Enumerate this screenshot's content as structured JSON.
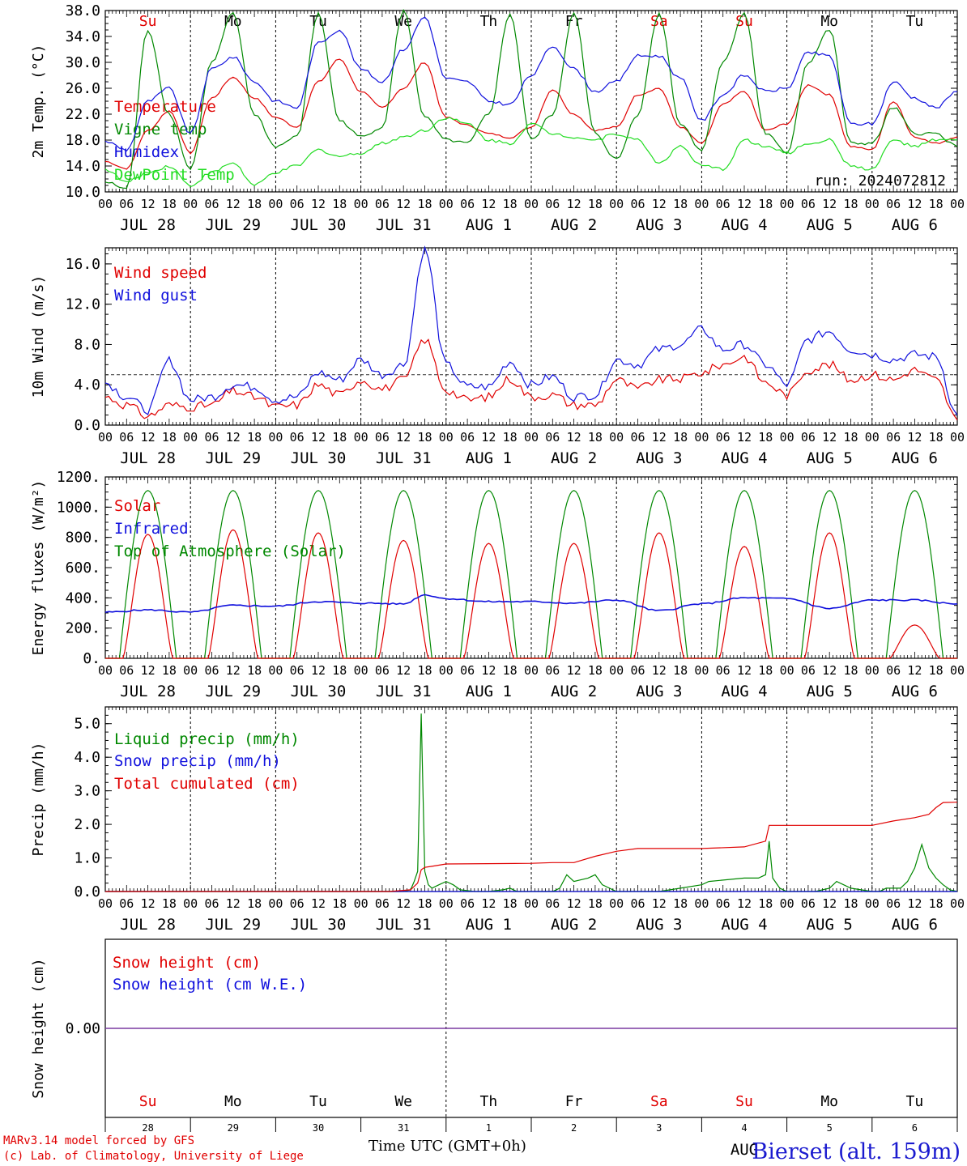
{
  "colors": {
    "red": "#e00000",
    "green": "#008800",
    "blue": "#1010dd",
    "lightgreen": "#22dd22",
    "purple": "#7a3aa0",
    "axis": "#000000"
  },
  "day_names": [
    "Su",
    "Mo",
    "Tu",
    "We",
    "Th",
    "Fr",
    "Sa",
    "Su",
    "Mo",
    "Tu"
  ],
  "day_name_colors": [
    "red",
    "black",
    "black",
    "black",
    "black",
    "black",
    "red",
    "red",
    "black",
    "black"
  ],
  "date_labels": [
    "JUL 28",
    "JUL 29",
    "JUL 30",
    "JUL 31",
    "AUG  1",
    "AUG  2",
    "AUG  3",
    "AUG  4",
    "AUG  5",
    "AUG  6"
  ],
  "hour_ticks": [
    "00",
    "06",
    "12",
    "18"
  ],
  "bottom_day_numbers": [
    "28",
    "29",
    "30",
    "31",
    "1",
    "2",
    "3",
    "4",
    "5",
    "6"
  ],
  "bottom_month": "AUG",
  "footer": {
    "model": "MARv3.14 model forced by GFS",
    "lab": "(c) Lab. of Climatology, University of Liege",
    "time_label": "Time UTC (GMT+0h)",
    "station": "Bierset (alt. 159m)"
  },
  "chart_data": [
    {
      "type": "line",
      "ylabel": "2m Temp. (°C)",
      "ylim": [
        10,
        38
      ],
      "yticks": [
        "10.0",
        "14.0",
        "18.0",
        "22.0",
        "26.0",
        "30.0",
        "34.0",
        "38.0"
      ],
      "annotation": "run: 2024072812",
      "series": [
        {
          "name": "Temperature",
          "color": "red",
          "x": [
            0,
            6,
            12,
            18,
            24,
            30,
            36,
            42,
            48,
            54,
            60,
            66,
            72,
            78,
            84,
            90,
            96,
            102,
            108,
            114,
            120,
            126,
            132,
            138,
            144,
            150,
            156,
            162,
            168,
            174,
            180,
            186,
            192,
            198,
            204,
            210,
            216,
            222,
            228,
            234,
            240
          ],
          "y": [
            14.7,
            13.6,
            19.5,
            22.5,
            16.0,
            24.5,
            27.7,
            24.5,
            21.5,
            20.0,
            27.0,
            30.5,
            25.5,
            23.0,
            26.0,
            30.0,
            21.5,
            20.3,
            19.0,
            18.4,
            20.0,
            25.8,
            22.0,
            19.5,
            20.0,
            25.0,
            26.0,
            20.0,
            17.5,
            23.5,
            25.5,
            19.5,
            20.5,
            26.5,
            25.0,
            17.0,
            16.5,
            24.0,
            18.5,
            17.5,
            18.5
          ]
        },
        {
          "name": "Vigne temp",
          "color": "green",
          "x": [
            0,
            6,
            12,
            18,
            24,
            30,
            36,
            42,
            48,
            54,
            60,
            66,
            72,
            78,
            84,
            90,
            96,
            102,
            108,
            114,
            120,
            126,
            132,
            138,
            144,
            150,
            156,
            162,
            168,
            174,
            180,
            186,
            192,
            198,
            204,
            210,
            216,
            222,
            228,
            234,
            240
          ],
          "y": [
            11.5,
            10.5,
            35.0,
            22.0,
            13.5,
            30.0,
            37.5,
            22.0,
            17.0,
            18.5,
            37.5,
            21.0,
            18.5,
            20.0,
            38.0,
            21.5,
            18.0,
            17.5,
            22.0,
            37.5,
            18.0,
            22.0,
            37.5,
            19.0,
            15.0,
            22.0,
            37.5,
            20.5,
            16.5,
            30.0,
            37.5,
            19.0,
            16.0,
            30.0,
            35.0,
            17.5,
            17.5,
            23.0,
            19.0,
            19.0,
            17.0
          ]
        },
        {
          "name": "Humidex",
          "color": "blue",
          "x": [
            0,
            6,
            12,
            18,
            24,
            30,
            36,
            42,
            48,
            54,
            60,
            66,
            72,
            78,
            84,
            90,
            96,
            102,
            108,
            114,
            120,
            126,
            132,
            138,
            144,
            150,
            156,
            162,
            168,
            174,
            180,
            186,
            192,
            198,
            204,
            210,
            216,
            222,
            228,
            234,
            240
          ],
          "y": [
            17.8,
            16.5,
            24.0,
            26.0,
            19.0,
            29.0,
            30.8,
            27.0,
            24.0,
            23.0,
            33.0,
            35.0,
            29.0,
            27.0,
            32.0,
            37.0,
            27.5,
            27.0,
            24.0,
            23.5,
            28.0,
            32.5,
            29.0,
            25.5,
            27.0,
            31.0,
            31.0,
            27.5,
            21.0,
            25.0,
            28.0,
            25.5,
            26.0,
            31.5,
            31.0,
            20.5,
            20.5,
            27.0,
            24.5,
            23.0,
            25.5
          ]
        },
        {
          "name": "DewPoint Temp",
          "color": "lightgreen",
          "x": [
            0,
            6,
            12,
            18,
            24,
            30,
            36,
            42,
            48,
            54,
            60,
            66,
            72,
            78,
            84,
            90,
            96,
            102,
            108,
            114,
            120,
            126,
            132,
            138,
            144,
            150,
            156,
            162,
            168,
            174,
            180,
            186,
            192,
            198,
            204,
            210,
            216,
            222,
            228,
            234,
            240
          ],
          "y": [
            13.5,
            11.5,
            13.0,
            14.0,
            11.0,
            13.0,
            14.5,
            11.0,
            13.0,
            14.0,
            16.5,
            15.5,
            16.0,
            17.5,
            18.5,
            19.5,
            21.5,
            20.5,
            18.0,
            17.5,
            20.5,
            19.0,
            18.5,
            18.0,
            19.0,
            18.0,
            14.5,
            17.0,
            14.0,
            13.5,
            18.0,
            17.0,
            16.0,
            17.5,
            18.0,
            14.0,
            13.5,
            18.0,
            17.0,
            18.0,
            18.0
          ]
        }
      ]
    },
    {
      "type": "line",
      "ylabel": "10m Wind (m/s)",
      "ylim": [
        0,
        17.6
      ],
      "yticks": [
        "0.0",
        "4.0",
        "8.0",
        "12.0",
        "16.0"
      ],
      "reference_line": 5.0,
      "series": [
        {
          "name": "Wind speed",
          "color": "red",
          "x": [
            0,
            6,
            12,
            18,
            24,
            30,
            36,
            42,
            48,
            54,
            60,
            66,
            72,
            78,
            84,
            90,
            96,
            102,
            108,
            114,
            120,
            126,
            132,
            138,
            144,
            150,
            156,
            162,
            168,
            174,
            180,
            186,
            192,
            198,
            204,
            210,
            216,
            222,
            228,
            234,
            240
          ],
          "y": [
            2.8,
            2.0,
            0.9,
            2.0,
            1.8,
            2.0,
            3.4,
            2.8,
            1.8,
            2.0,
            4.0,
            3.0,
            4.5,
            3.6,
            4.5,
            8.5,
            3.5,
            2.5,
            2.8,
            4.6,
            2.8,
            3.0,
            2.0,
            2.0,
            4.5,
            3.6,
            4.5,
            4.6,
            5.2,
            6.0,
            6.8,
            4.2,
            3.0,
            5.5,
            6.0,
            4.5,
            5.0,
            4.5,
            5.5,
            4.5,
            0.5
          ]
        },
        {
          "name": "Wind gust",
          "color": "blue",
          "x": [
            0,
            6,
            12,
            18,
            24,
            30,
            36,
            42,
            48,
            54,
            60,
            66,
            72,
            78,
            84,
            90,
            96,
            102,
            108,
            114,
            120,
            126,
            132,
            138,
            144,
            150,
            156,
            162,
            168,
            174,
            180,
            186,
            192,
            198,
            204,
            210,
            216,
            222,
            228,
            234,
            240
          ],
          "y": [
            4.2,
            2.8,
            1.5,
            6.4,
            2.5,
            2.8,
            4.0,
            3.8,
            2.5,
            2.8,
            5.2,
            4.5,
            6.5,
            5.0,
            6.0,
            17.4,
            6.0,
            3.8,
            3.8,
            6.3,
            4.0,
            4.8,
            2.8,
            3.0,
            6.5,
            6.0,
            7.5,
            8.0,
            9.5,
            7.5,
            8.0,
            6.0,
            4.0,
            8.5,
            9.3,
            7.5,
            7.0,
            6.5,
            7.0,
            6.8,
            1.0
          ]
        }
      ]
    },
    {
      "type": "line",
      "ylabel": "Energy fluxes (W/m²)",
      "ylim": [
        0,
        1200
      ],
      "yticks": [
        "0.",
        "200.",
        "400.",
        "600.",
        "800.",
        "1000.",
        "1200."
      ],
      "series": [
        {
          "name": "Solar",
          "color": "red",
          "day_peaks": [
            820,
            850,
            830,
            780,
            760,
            760,
            830,
            740,
            830,
            220
          ]
        },
        {
          "name": "Infrared",
          "color": "blue",
          "x": [
            0,
            12,
            24,
            36,
            48,
            60,
            72,
            84,
            90,
            96,
            108,
            120,
            132,
            144,
            156,
            168,
            180,
            192,
            204,
            216,
            228,
            240
          ],
          "y": [
            305,
            320,
            305,
            350,
            345,
            375,
            365,
            360,
            420,
            395,
            375,
            375,
            365,
            385,
            315,
            360,
            400,
            395,
            330,
            385,
            385,
            360
          ]
        },
        {
          "name": "Top of Atmosphere (Solar)",
          "color": "green",
          "peak": 1110
        }
      ]
    },
    {
      "type": "line",
      "ylabel": "Precip (mm/h)",
      "ylim": [
        0,
        5.5
      ],
      "yticks": [
        "0.0",
        "1.0",
        "2.0",
        "3.0",
        "4.0",
        "5.0"
      ],
      "series": [
        {
          "name": "Liquid precip (mm/h)",
          "color": "green",
          "x": [
            0,
            80,
            84,
            86,
            87,
            88,
            89,
            90,
            91,
            92,
            94,
            96,
            98,
            100,
            104,
            108,
            112,
            114,
            116,
            118,
            120,
            126,
            128,
            130,
            132,
            136,
            138,
            140,
            144,
            156,
            162,
            168,
            170,
            180,
            184,
            186,
            187,
            188,
            190,
            192,
            198,
            200,
            202,
            204,
            206,
            208,
            210,
            216,
            218,
            220,
            224,
            226,
            228,
            230,
            232,
            234,
            236,
            238,
            240
          ],
          "y": [
            0,
            0,
            0,
            0.05,
            0.3,
            0.6,
            5.3,
            0.6,
            0.2,
            0.1,
            0.2,
            0.3,
            0.2,
            0.05,
            0,
            0,
            0.05,
            0.1,
            0,
            0,
            0,
            0,
            0.1,
            0.5,
            0.3,
            0.4,
            0.5,
            0.2,
            0,
            0,
            0.1,
            0.2,
            0.3,
            0.4,
            0.4,
            0.5,
            1.5,
            0.4,
            0.1,
            0,
            0,
            0,
            0.05,
            0.1,
            0.3,
            0.2,
            0.1,
            0,
            0,
            0.1,
            0.1,
            0.3,
            0.7,
            1.4,
            0.7,
            0.4,
            0.2,
            0.05,
            0
          ]
        },
        {
          "name": "Snow precip (mm/h)",
          "color": "blue",
          "x": [
            0,
            240
          ],
          "y": [
            0,
            0
          ]
        },
        {
          "name": "Total cumulated (cm)",
          "color": "red",
          "x": [
            0,
            80,
            86,
            88,
            89,
            90,
            92,
            96,
            120,
            126,
            132,
            138,
            144,
            150,
            156,
            168,
            180,
            186,
            187,
            192,
            204,
            216,
            222,
            228,
            232,
            234,
            236,
            240
          ],
          "y": [
            0,
            0,
            0.05,
            0.25,
            0.65,
            0.72,
            0.75,
            0.82,
            0.84,
            0.86,
            0.86,
            1.05,
            1.2,
            1.28,
            1.28,
            1.28,
            1.33,
            1.5,
            1.97,
            1.97,
            1.97,
            1.97,
            2.1,
            2.2,
            2.3,
            2.5,
            2.65,
            2.66
          ]
        }
      ]
    },
    {
      "type": "line",
      "ylabel": "Snow height (cm)",
      "yticks": [
        "0.00"
      ],
      "series": [
        {
          "name": "Snow height (cm)",
          "color": "red",
          "x": [
            0,
            240
          ],
          "y": [
            0,
            0
          ]
        },
        {
          "name": "Snow height (cm W.E.)",
          "color": "blue",
          "x": [
            0,
            240
          ],
          "y": [
            0,
            0
          ]
        }
      ]
    }
  ]
}
